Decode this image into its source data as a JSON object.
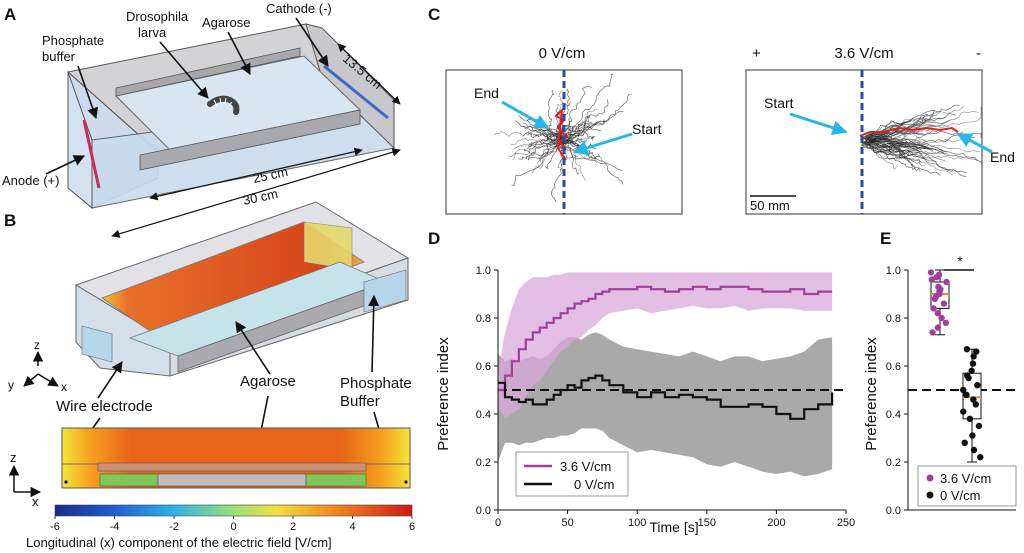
{
  "panels": {
    "A": {
      "letter": "A",
      "labels": {
        "drosophila_line1": "Drosophila",
        "drosophila_line2": "larva",
        "agarose": "Agarose",
        "cathode": "Cathode (-)",
        "phosphate_line1": "Phosphate",
        "phosphate_line2": "buffer",
        "anode": "Anode (+)",
        "dim_depth": "13.5 cm",
        "dim_inner": "25 cm",
        "dim_outer": "30 cm"
      }
    },
    "B": {
      "letter": "B",
      "labels": {
        "axis_z": "z",
        "axis_y": "y",
        "axis_x": "x",
        "wire_electrode": "Wire electrode",
        "agarose": "Agarose",
        "phosphate_line1": "Phosphate",
        "phosphate_line2": "Buffer",
        "section_z": "z",
        "section_x": "x"
      },
      "colorbar": {
        "ticks": [
          "-6",
          "-4",
          "-2",
          "0",
          "2",
          "4",
          "6"
        ],
        "label": "Longitudinal (x) component of the electric field [V/cm]"
      }
    },
    "C": {
      "letter": "C",
      "left": {
        "title": "0 V/cm",
        "end_label": "End",
        "start_label": "Start"
      },
      "right": {
        "title": "3.6 V/cm",
        "plus": "+",
        "minus": "-",
        "start_label": "Start",
        "end_label": "End",
        "scalebar": "50 mm"
      }
    },
    "D": {
      "letter": "D"
    },
    "E": {
      "letter": "E",
      "significance": "*"
    }
  },
  "colors": {
    "purple": "#a0409c",
    "purple_band": "#d9a8dc",
    "black": "#111111",
    "gray_band": "#9a9a9a",
    "arrow_blue": "#29b6e6",
    "midline_blue": "#2b4aa0",
    "trajectory_red": "#e02020"
  },
  "chart_data": [
    {
      "type": "line",
      "panel": "D",
      "xlabel": "Time [s]",
      "ylabel": "Preference index",
      "xlim": [
        0,
        250
      ],
      "ylim": [
        0,
        1.0
      ],
      "xticks": [
        0,
        50,
        100,
        150,
        200,
        250
      ],
      "yticks": [
        0.0,
        0.2,
        0.4,
        0.6,
        0.8,
        1.0
      ],
      "reference_line": 0.5,
      "legend_position": "bottom-left",
      "series": [
        {
          "name": "3.6 V/cm",
          "color": "#a0409c",
          "x": [
            0,
            5,
            10,
            15,
            20,
            25,
            30,
            35,
            40,
            45,
            50,
            55,
            60,
            65,
            70,
            75,
            80,
            90,
            100,
            110,
            120,
            130,
            140,
            150,
            160,
            170,
            180,
            190,
            200,
            210,
            220,
            230,
            240
          ],
          "values": [
            0.5,
            0.56,
            0.62,
            0.67,
            0.71,
            0.74,
            0.76,
            0.78,
            0.8,
            0.82,
            0.84,
            0.86,
            0.87,
            0.88,
            0.9,
            0.91,
            0.92,
            0.92,
            0.93,
            0.92,
            0.91,
            0.92,
            0.93,
            0.92,
            0.93,
            0.93,
            0.92,
            0.91,
            0.91,
            0.92,
            0.9,
            0.91,
            0.91
          ],
          "upper": [
            0.57,
            0.74,
            0.84,
            0.92,
            0.95,
            0.97,
            0.97,
            0.97,
            0.98,
            0.98,
            0.99,
            0.99,
            0.99,
            0.99,
            0.99,
            0.99,
            0.99,
            0.99,
            0.99,
            0.99,
            0.99,
            0.99,
            0.99,
            0.99,
            0.99,
            0.99,
            0.99,
            0.99,
            0.99,
            0.99,
            0.99,
            0.99,
            0.99
          ],
          "lower": [
            0.43,
            0.38,
            0.4,
            0.42,
            0.47,
            0.52,
            0.54,
            0.58,
            0.62,
            0.66,
            0.68,
            0.71,
            0.72,
            0.75,
            0.77,
            0.8,
            0.82,
            0.83,
            0.84,
            0.82,
            0.83,
            0.84,
            0.85,
            0.84,
            0.84,
            0.85,
            0.83,
            0.84,
            0.84,
            0.84,
            0.83,
            0.83,
            0.83
          ]
        },
        {
          "name": "0 V/cm",
          "color": "#111111",
          "x": [
            0,
            5,
            10,
            15,
            20,
            25,
            30,
            35,
            40,
            45,
            50,
            55,
            60,
            65,
            70,
            75,
            80,
            90,
            100,
            110,
            120,
            130,
            140,
            150,
            160,
            170,
            180,
            190,
            200,
            210,
            220,
            230,
            240
          ],
          "values": [
            0.53,
            0.47,
            0.46,
            0.45,
            0.46,
            0.44,
            0.44,
            0.46,
            0.48,
            0.5,
            0.52,
            0.51,
            0.54,
            0.55,
            0.56,
            0.54,
            0.52,
            0.49,
            0.47,
            0.49,
            0.47,
            0.48,
            0.47,
            0.46,
            0.43,
            0.43,
            0.44,
            0.43,
            0.4,
            0.38,
            0.42,
            0.44,
            0.49
          ],
          "upper": [
            0.65,
            0.62,
            0.63,
            0.62,
            0.63,
            0.64,
            0.63,
            0.64,
            0.67,
            0.7,
            0.72,
            0.72,
            0.71,
            0.73,
            0.74,
            0.73,
            0.71,
            0.68,
            0.67,
            0.66,
            0.65,
            0.64,
            0.66,
            0.64,
            0.62,
            0.64,
            0.64,
            0.62,
            0.63,
            0.64,
            0.66,
            0.71,
            0.72
          ],
          "lower": [
            0.2,
            0.28,
            0.28,
            0.27,
            0.28,
            0.28,
            0.29,
            0.3,
            0.3,
            0.31,
            0.31,
            0.32,
            0.34,
            0.34,
            0.34,
            0.33,
            0.3,
            0.27,
            0.24,
            0.25,
            0.24,
            0.23,
            0.22,
            0.19,
            0.18,
            0.2,
            0.18,
            0.16,
            0.15,
            0.16,
            0.14,
            0.15,
            0.17
          ]
        }
      ]
    },
    {
      "type": "box",
      "panel": "E",
      "ylabel": "Preference index",
      "ylim": [
        0,
        1.0
      ],
      "yticks": [
        0.0,
        0.2,
        0.4,
        0.6,
        0.8,
        1.0
      ],
      "reference_line": 0.5,
      "legend_position": "bottom",
      "groups": [
        {
          "name": "3.6 V/cm",
          "color": "#a0409c",
          "box": {
            "min": 0.73,
            "q1": 0.84,
            "median": 0.9,
            "q3": 0.95,
            "max": 1.0
          },
          "points": [
            0.99,
            0.98,
            0.97,
            0.96,
            0.95,
            0.93,
            0.92,
            0.91,
            0.9,
            0.89,
            0.88,
            0.86,
            0.84,
            0.82,
            0.8,
            0.78,
            0.76,
            0.74
          ]
        },
        {
          "name": "0 V/cm",
          "color": "#111111",
          "box": {
            "min": 0.2,
            "q1": 0.38,
            "median": 0.47,
            "q3": 0.57,
            "max": 0.67
          },
          "points": [
            0.67,
            0.66,
            0.64,
            0.61,
            0.58,
            0.56,
            0.55,
            0.52,
            0.5,
            0.48,
            0.46,
            0.44,
            0.41,
            0.38,
            0.35,
            0.31,
            0.28,
            0.25,
            0.22
          ]
        }
      ]
    }
  ]
}
